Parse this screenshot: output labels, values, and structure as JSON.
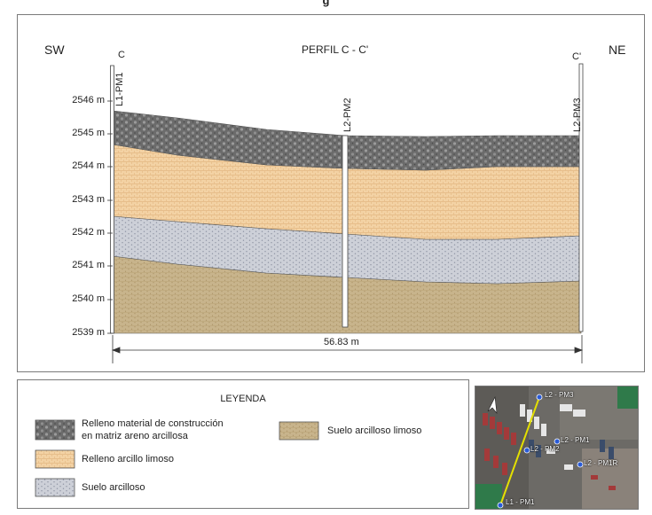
{
  "figure": {
    "caption_fragment": "g"
  },
  "profile": {
    "title": "PERFIL C - C'",
    "left_direction": "SW",
    "right_direction": "NE",
    "left_marker": "C",
    "right_marker": "C'",
    "distance_label": "56.83 m",
    "y_ticks": [
      "2546 m",
      "2545 m",
      "2544 m",
      "2543 m",
      "2542 m",
      "2541 m",
      "2540 m",
      "2539 m"
    ],
    "boreholes": [
      {
        "label": "L1-PM1"
      },
      {
        "label": "L2-PM2"
      },
      {
        "label": "L2-PM3"
      }
    ]
  },
  "legend": {
    "title": "LEYENDA",
    "items": [
      {
        "line1": "Relleno material de construcción",
        "line2": "en matriz areno arcillosa",
        "color": "#6e6e6e",
        "icon": "gravel-pattern"
      },
      {
        "line1": "Suelo arcilloso limoso",
        "line2": "",
        "color": "#c8b48c",
        "icon": "dotted-sand-pattern"
      },
      {
        "line1": "Relleno arcillo limoso",
        "line2": "",
        "color": "#f3d2a4",
        "icon": "hatched-peach-pattern"
      },
      {
        "line1": "Suelo arcilloso",
        "line2": "",
        "color": "#cdd0d8",
        "icon": "dotted-gray-pattern"
      }
    ]
  },
  "map": {
    "labels": [
      "L2 - PM3",
      "L2 - PM2",
      "L2 - PM1",
      "L2 - PM1R",
      "L1 - PM1"
    ],
    "marker_color": "#2a5bd7",
    "line_color": "#e4e000"
  }
}
